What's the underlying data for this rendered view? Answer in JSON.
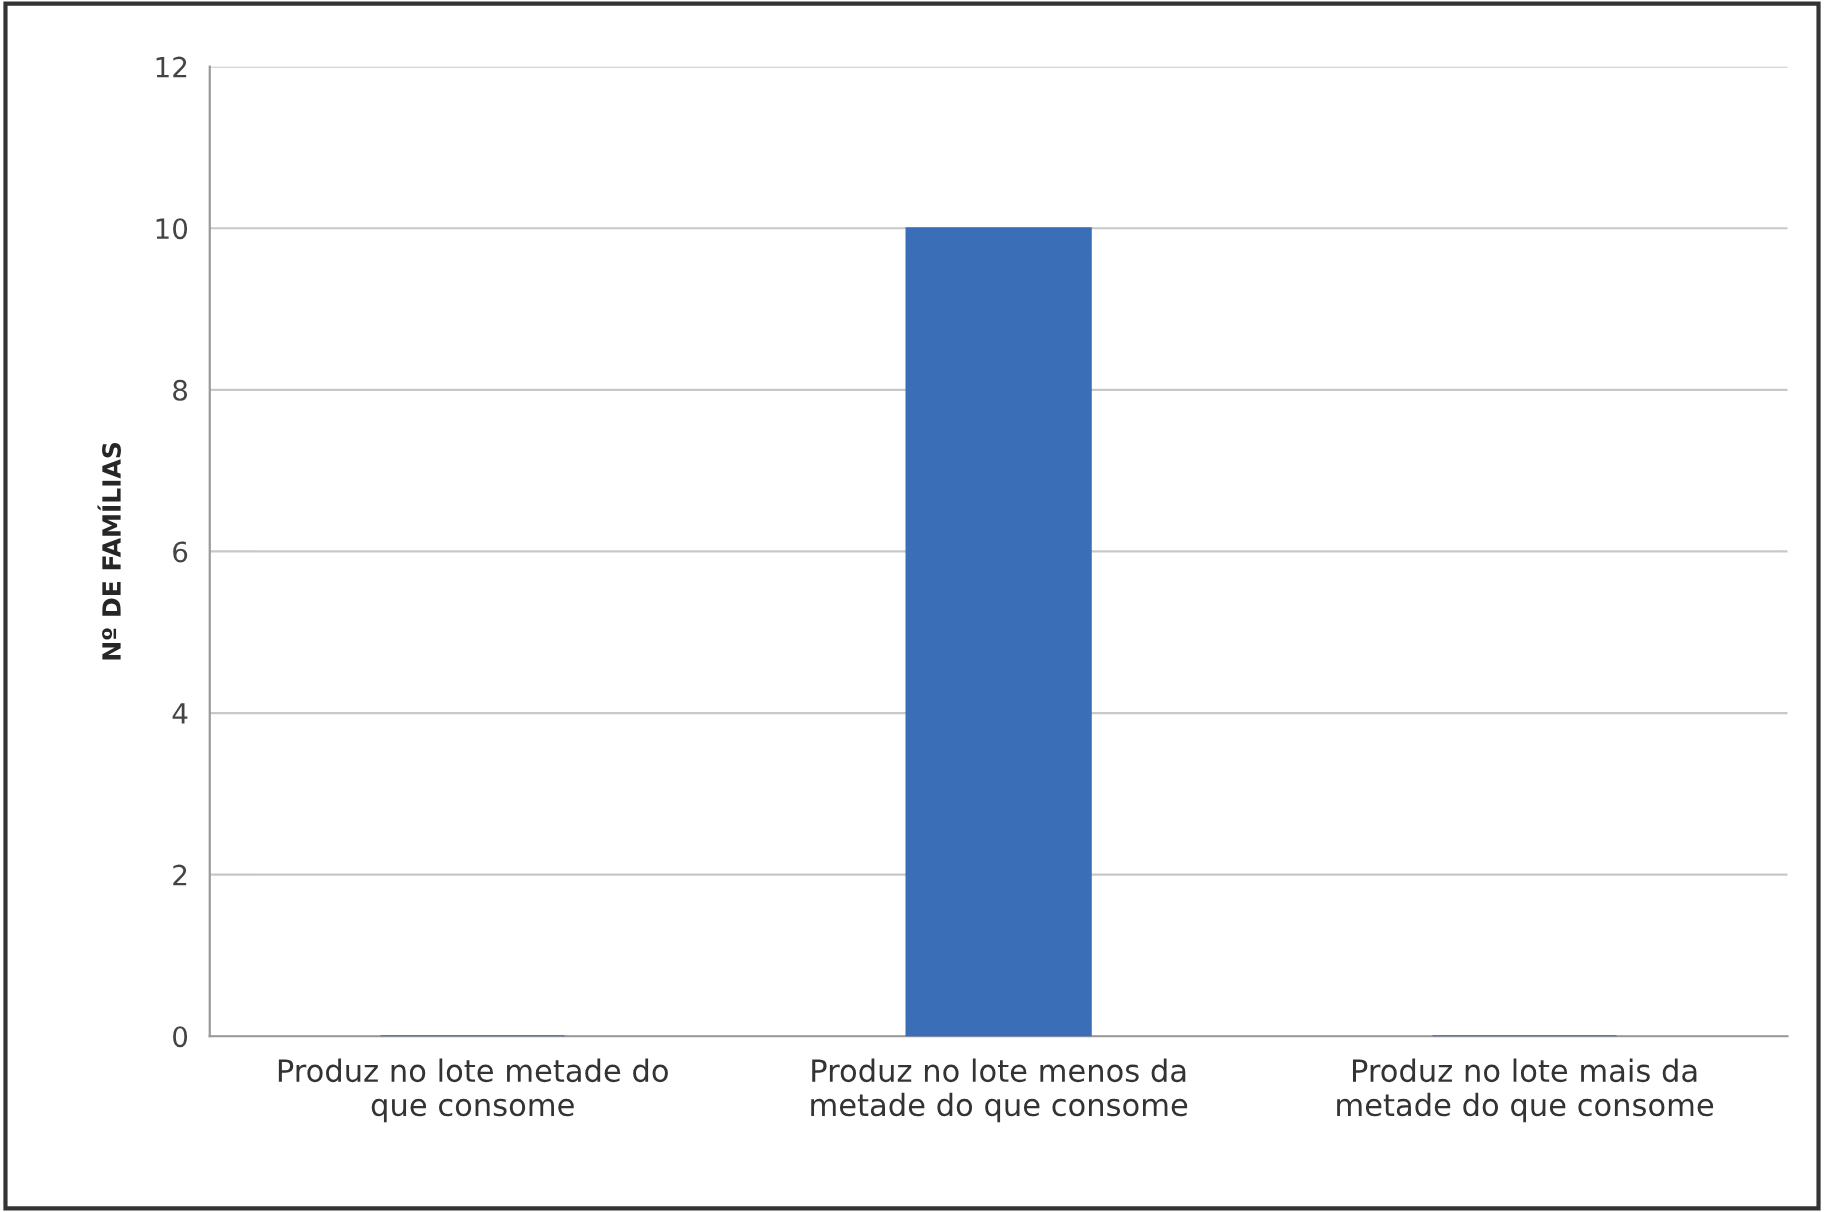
{
  "chart_data": {
    "type": "bar",
    "ylabel": "Nº DE FAMÍLIAS",
    "categories": [
      "Produz no lote metade do\nque consome",
      "Produz no lote menos da\nmetade do que consome",
      "Produz no lote mais da\nmetade do que consome"
    ],
    "values": [
      0,
      10,
      0
    ],
    "color": "#3a6fb8",
    "ylim": [
      0,
      12
    ],
    "yticks": [
      0,
      2,
      4,
      6,
      8,
      10,
      12
    ],
    "grid": "y"
  }
}
